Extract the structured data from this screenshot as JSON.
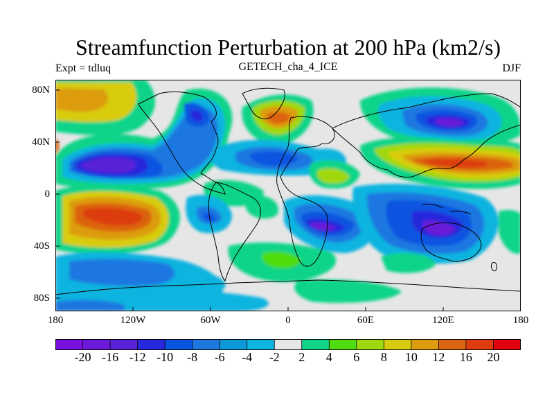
{
  "title": "Streamfunction Perturbation at 200 hPa (km2/s)",
  "subtitle_left": "Expt = tdluq",
  "subtitle_center": "GETECH_cha_4_ICE",
  "subtitle_right": "DJF",
  "lat_labels": [
    "80N",
    "40N",
    "0",
    "40S",
    "80S"
  ],
  "lon_labels": [
    "180",
    "120W",
    "60W",
    "0",
    "60E",
    "120E",
    "180"
  ],
  "colorbar": {
    "labels": [
      "-20",
      "-16",
      "-12",
      "-10",
      "-8",
      "-6",
      "-4",
      "-2",
      "2",
      "4",
      "6",
      "8",
      "10",
      "12",
      "16",
      "20"
    ],
    "colors": [
      "#7a10e0",
      "#6a1ad8",
      "#5a22d6",
      "#2727dc",
      "#0a55e0",
      "#1e78e0",
      "#0d98d8",
      "#0db4e0",
      "#e6e6e6",
      "#10d488",
      "#50dc10",
      "#a0d810",
      "#d8cc10",
      "#dc9c10",
      "#dc6410",
      "#dc3c10",
      "#e00010"
    ]
  }
}
